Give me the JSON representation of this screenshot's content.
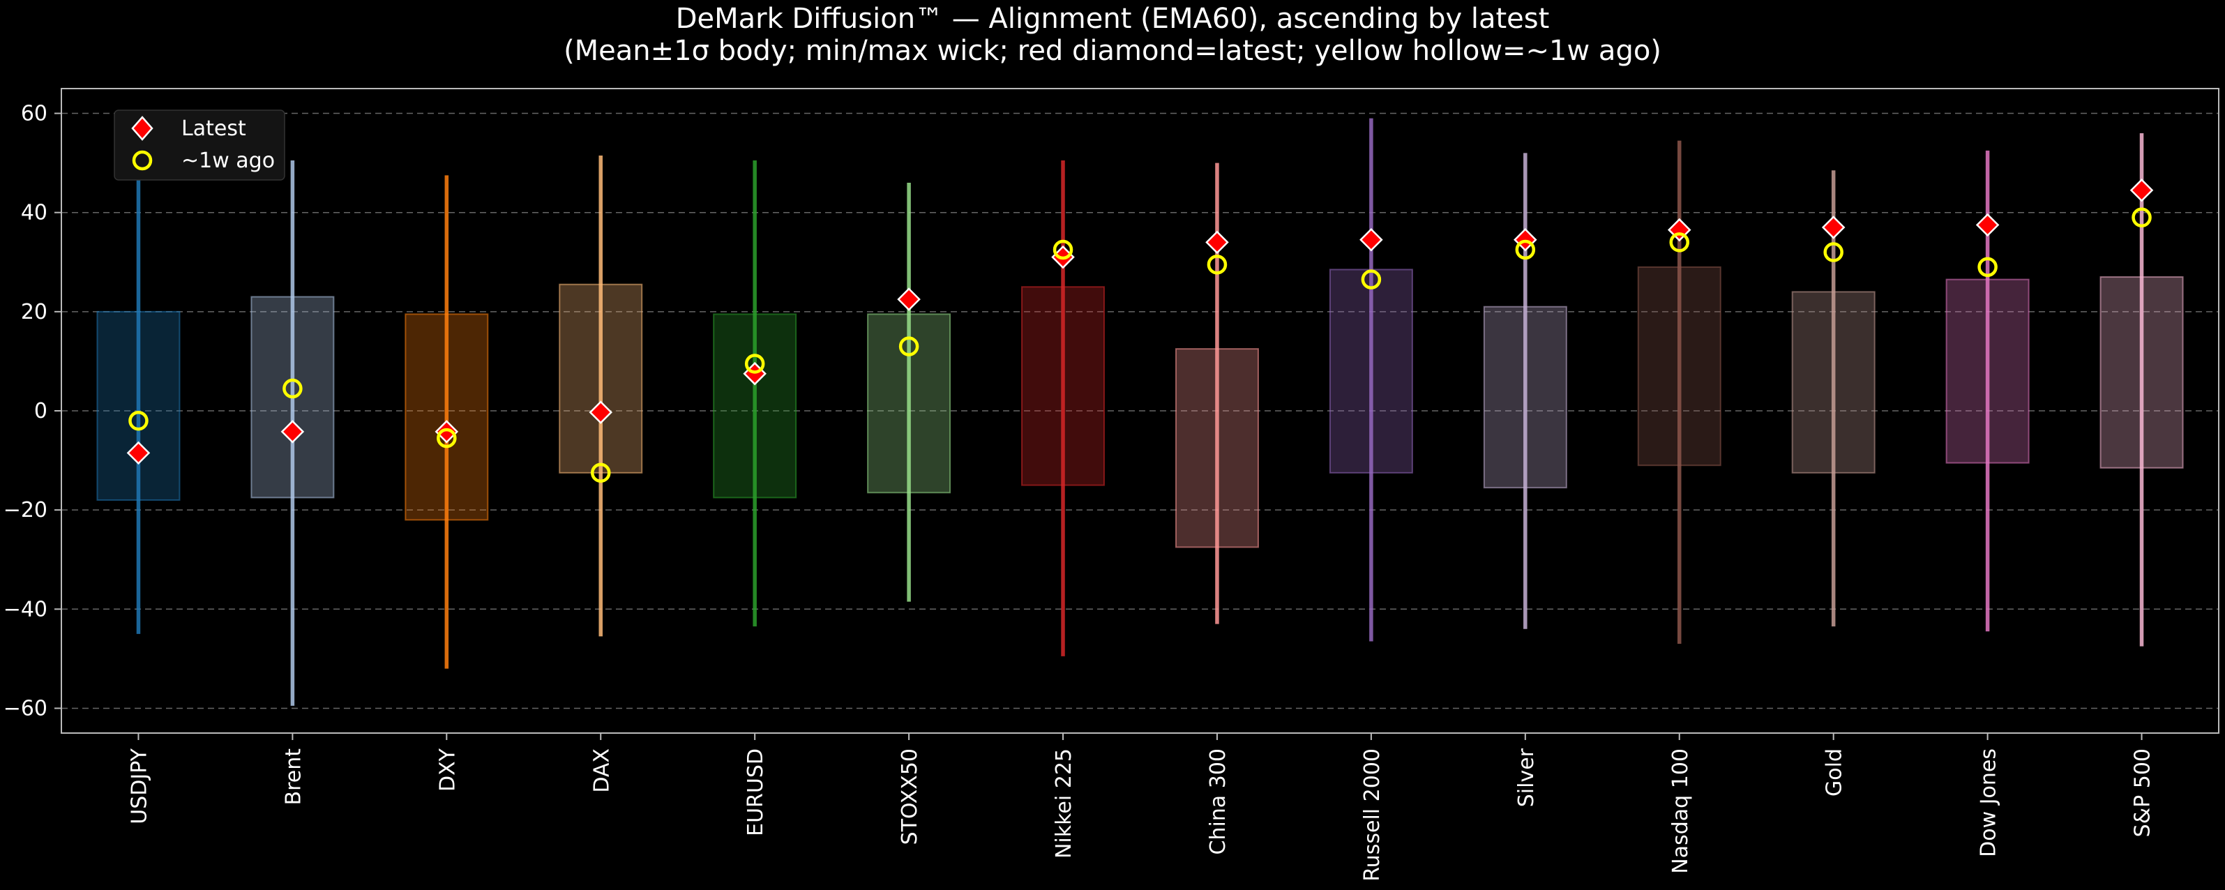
{
  "chart_data": {
    "type": "box",
    "title": "DeMark Diffusion™ — Alignment (EMA60), ascending by latest",
    "subtitle": "(Mean±1σ body; min/max wick; red diamond=latest; yellow hollow=~1w ago)",
    "xlabel": "",
    "ylabel": "",
    "ylim": [
      -65,
      65
    ],
    "yticks": [
      60,
      40,
      20,
      0,
      -20,
      -40,
      -60
    ],
    "grid": true,
    "legend": {
      "placement": "top-left",
      "latest_label": "Latest",
      "week_ago_label": "~1w ago"
    },
    "series": [
      {
        "name": "USDJPY",
        "color": "#1f77b4",
        "mean_minus_sd": -18,
        "mean_plus_sd": 20,
        "min": -45,
        "max": 51,
        "latest": -8.5,
        "week_ago": -2
      },
      {
        "name": "Brent",
        "color": "#aec7e8",
        "mean_minus_sd": -17.5,
        "mean_plus_sd": 23,
        "min": -59.5,
        "max": 50.5,
        "latest": -4.2,
        "week_ago": 4.5
      },
      {
        "name": "DXY",
        "color": "#ff7f0e",
        "mean_minus_sd": -22,
        "mean_plus_sd": 19.5,
        "min": -52,
        "max": 47.5,
        "latest": -4.2,
        "week_ago": -5.5
      },
      {
        "name": "DAX",
        "color": "#ffbb78",
        "mean_minus_sd": -12.5,
        "mean_plus_sd": 25.5,
        "min": -45.5,
        "max": 51.5,
        "latest": -0.3,
        "week_ago": -12.5
      },
      {
        "name": "EURUSD",
        "color": "#2ca02c",
        "mean_minus_sd": -17.5,
        "mean_plus_sd": 19.5,
        "min": -43.5,
        "max": 50.5,
        "latest": 7.5,
        "week_ago": 9.5
      },
      {
        "name": "STOXX50",
        "color": "#98df8a",
        "mean_minus_sd": -16.5,
        "mean_plus_sd": 19.5,
        "min": -38.5,
        "max": 46,
        "latest": 22.5,
        "week_ago": 13
      },
      {
        "name": "Nikkei 225",
        "color": "#d62728",
        "mean_minus_sd": -15,
        "mean_plus_sd": 25,
        "min": -49.5,
        "max": 50.5,
        "latest": 31,
        "week_ago": 32.5
      },
      {
        "name": "China 300",
        "color": "#ff9896",
        "mean_minus_sd": -27.5,
        "mean_plus_sd": 12.5,
        "min": -43,
        "max": 50,
        "latest": 34,
        "week_ago": 29.5
      },
      {
        "name": "Russell 2000",
        "color": "#9467bd",
        "mean_minus_sd": -12.5,
        "mean_plus_sd": 28.5,
        "min": -46.5,
        "max": 59,
        "latest": 34.5,
        "week_ago": 26.5
      },
      {
        "name": "Silver",
        "color": "#c5b0d5",
        "mean_minus_sd": -15.5,
        "mean_plus_sd": 21,
        "min": -44,
        "max": 52,
        "latest": 34.5,
        "week_ago": 32.5
      },
      {
        "name": "Nasdaq 100",
        "color": "#8c564b",
        "mean_minus_sd": -11,
        "mean_plus_sd": 29,
        "min": -47,
        "max": 54.5,
        "latest": 36.5,
        "week_ago": 34
      },
      {
        "name": "Gold",
        "color": "#c49c94",
        "mean_minus_sd": -12.5,
        "mean_plus_sd": 24,
        "min": -43.5,
        "max": 48.5,
        "latest": 37,
        "week_ago": 32
      },
      {
        "name": "Dow Jones",
        "color": "#e377c2",
        "mean_minus_sd": -10.5,
        "mean_plus_sd": 26.5,
        "min": -44.5,
        "max": 52.5,
        "latest": 37.5,
        "week_ago": 29
      },
      {
        "name": "S&P 500",
        "color": "#f7b6d2",
        "mean_minus_sd": -11.5,
        "mean_plus_sd": 27,
        "min": -47.5,
        "max": 56,
        "latest": 44.5,
        "week_ago": 39
      }
    ],
    "colors": {
      "background": "#000000",
      "text": "#ffffff",
      "axis": "#bbbbbb",
      "grid": "#666666",
      "latest_marker": "#ff0000",
      "latest_edge": "#ffffff",
      "week_ago_marker": "#ffff00",
      "legend_bg": "#141414"
    }
  }
}
